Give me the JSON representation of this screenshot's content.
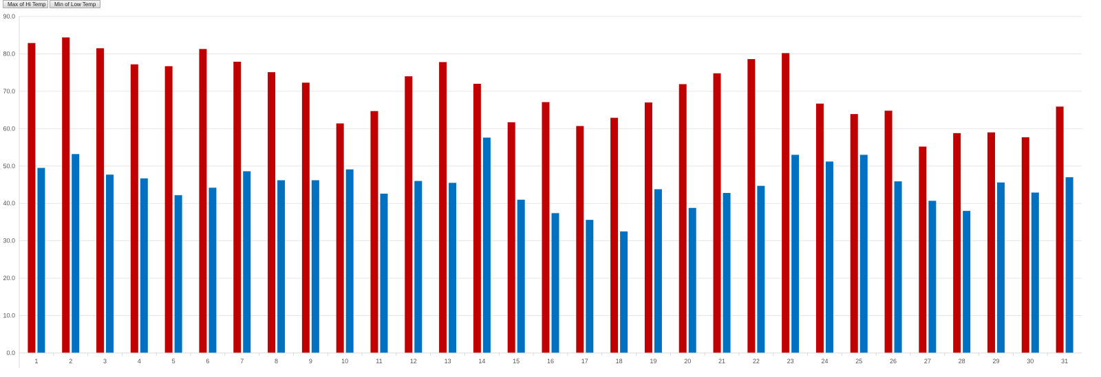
{
  "pivot_fields": [
    {
      "label": "Max of Hi Temp"
    },
    {
      "label": "Min of Low Temp"
    }
  ],
  "chart_data": {
    "type": "bar",
    "title": "",
    "xlabel": "",
    "ylabel": "",
    "ylim": [
      0,
      90
    ],
    "grid": true,
    "legend": "none",
    "y_ticks": [
      0,
      10,
      20,
      30,
      40,
      50,
      60,
      70,
      80,
      90
    ],
    "y_tick_labels": [
      "0.0",
      "10.0",
      "20.0",
      "30.0",
      "40.0",
      "50.0",
      "60.0",
      "70.0",
      "80.0",
      "90.0"
    ],
    "categories": [
      "1",
      "2",
      "3",
      "4",
      "5",
      "6",
      "7",
      "8",
      "9",
      "10",
      "11",
      "12",
      "13",
      "14",
      "15",
      "16",
      "17",
      "18",
      "19",
      "20",
      "21",
      "22",
      "23",
      "24",
      "25",
      "26",
      "27",
      "28",
      "29",
      "30",
      "31"
    ],
    "series": [
      {
        "name": "Max of Hi Temp",
        "color": "#c00000",
        "values": [
          82.9,
          84.4,
          81.5,
          77.2,
          76.7,
          81.3,
          77.9,
          75.1,
          72.3,
          61.4,
          64.7,
          74.0,
          77.8,
          72.0,
          61.7,
          67.1,
          60.7,
          62.9,
          67.0,
          71.9,
          74.8,
          78.6,
          80.2,
          66.7,
          63.9,
          64.8,
          55.2,
          58.8,
          59.0,
          57.7,
          65.9
        ]
      },
      {
        "name": "Min of Low Temp",
        "color": "#0070c0",
        "values": [
          49.5,
          53.2,
          47.7,
          46.7,
          42.2,
          44.2,
          48.6,
          46.2,
          46.2,
          49.1,
          42.6,
          46.0,
          45.5,
          57.6,
          41.0,
          37.4,
          35.6,
          32.5,
          43.8,
          38.8,
          42.8,
          44.7,
          53.0,
          51.2,
          53.0,
          45.9,
          40.7,
          38.0,
          45.6,
          42.9,
          47.0
        ]
      }
    ]
  }
}
